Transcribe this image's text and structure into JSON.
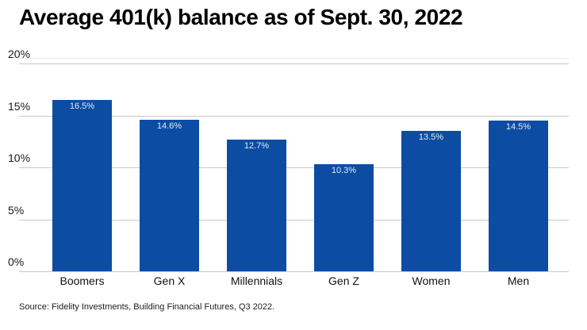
{
  "title": "Average 401(k) balance as of Sept. 30, 2022",
  "source": "Source: Fidelity Investments, Building Financial Futures, Q3 2022.",
  "colors": {
    "bar": "#0c4da3",
    "gridline": "#c9c9c9",
    "value_label": "rgba(255,255,255,0.88)",
    "title_text": "#000000",
    "axis_text": "#1a1a1a",
    "background": "#ffffff"
  },
  "chart_data": {
    "type": "bar",
    "title": "Average 401(k) balance as of Sept. 30, 2022",
    "categories": [
      "Boomers",
      "Gen X",
      "Millennials",
      "Gen Z",
      "Women",
      "Men"
    ],
    "values": [
      16.5,
      14.6,
      12.7,
      10.3,
      13.5,
      14.5
    ],
    "value_labels": [
      "16.5%",
      "14.6%",
      "12.7%",
      "10.3%",
      "13.5%",
      "14.5%"
    ],
    "yticks": [
      0,
      5,
      10,
      15,
      20
    ],
    "ytick_labels": [
      "0%",
      "5%",
      "10%",
      "15%",
      "20%"
    ],
    "ylim": [
      0,
      20
    ],
    "xlabel": "",
    "ylabel": "",
    "grid": "horizontal",
    "legend": "none",
    "value_labels_position": "inside-top",
    "source": "Source: Fidelity Investments, Building Financial Futures, Q3 2022."
  }
}
